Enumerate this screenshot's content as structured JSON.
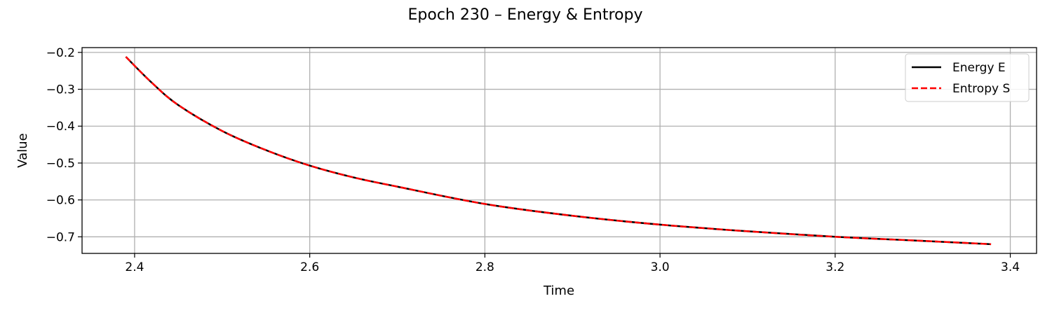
{
  "chart_data": {
    "type": "line",
    "title": "Epoch 230 – Energy & Entropy",
    "xlabel": "Time",
    "ylabel": "Value",
    "xlim": [
      2.34,
      3.43
    ],
    "ylim": [
      -0.745,
      -0.187
    ],
    "xticks": [
      2.4,
      2.6,
      2.8,
      3.0,
      3.2,
      3.4
    ],
    "xtick_labels": [
      "2.4",
      "2.6",
      "2.8",
      "3.0",
      "3.2",
      "3.4"
    ],
    "yticks": [
      -0.2,
      -0.3,
      -0.4,
      -0.5,
      -0.6,
      -0.7
    ],
    "ytick_labels": [
      "−0.2",
      "−0.3",
      "−0.4",
      "−0.5",
      "−0.6",
      "−0.7"
    ],
    "grid": true,
    "legend_position": "top-right",
    "x": [
      2.39,
      2.42,
      2.45,
      2.5,
      2.55,
      2.6,
      2.65,
      2.7,
      2.8,
      2.9,
      3.0,
      3.1,
      3.2,
      3.3,
      3.378
    ],
    "series": [
      {
        "name": "Energy E",
        "color": "#000000",
        "style": "solid",
        "values": [
          -0.212,
          -0.283,
          -0.343,
          -0.413,
          -0.465,
          -0.507,
          -0.539,
          -0.564,
          -0.611,
          -0.643,
          -0.667,
          -0.685,
          -0.7,
          -0.711,
          -0.72
        ]
      },
      {
        "name": "Entropy S",
        "color": "#ff0000",
        "style": "dashed",
        "values": [
          -0.212,
          -0.283,
          -0.343,
          -0.413,
          -0.465,
          -0.507,
          -0.539,
          -0.564,
          -0.611,
          -0.643,
          -0.667,
          -0.685,
          -0.7,
          -0.711,
          -0.72
        ]
      }
    ]
  }
}
